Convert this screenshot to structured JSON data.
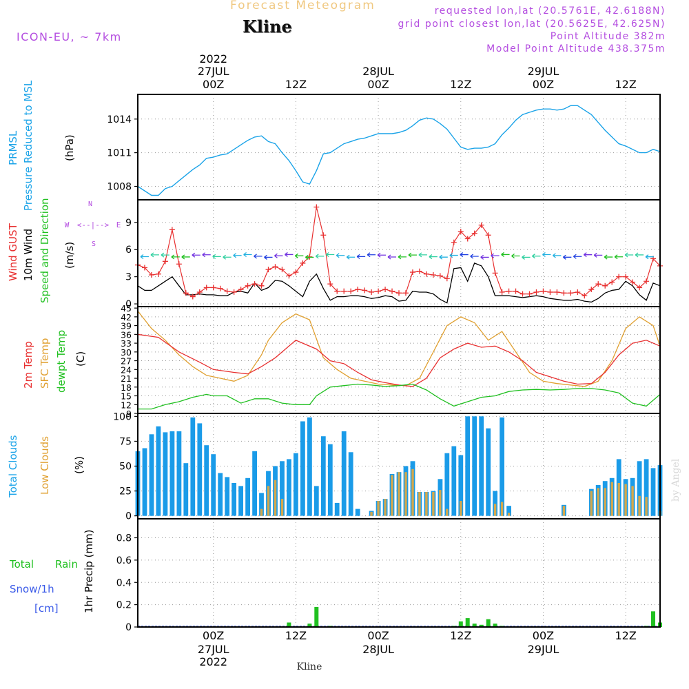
{
  "header": {
    "title": "Forecast Meteogram",
    "location": "Kline",
    "model": "ICON-EU, ~ 7km",
    "requested": "requested lon,lat (20.5761E, 42.6188N)",
    "grid_point": "grid point closest lon,lat (20.5625E, 42.625N)",
    "point_altitude": "Point Altitude 382m",
    "model_altitude": "Model Point Altitude 438.375m",
    "credit": "by Angel",
    "footer_location": "Kline"
  },
  "colors": {
    "pressure": "#1aa3e8",
    "gust": "#e83030",
    "wind": "#000000",
    "temp2m": "#e83030",
    "sfc": "#e0a030",
    "dewpt": "#20c020",
    "total_cloud": "#1a9be8",
    "low_cloud": "#d4a84c",
    "rain": "#20c020",
    "snow": "#3a5ae8",
    "label_purple": "#b44ee0"
  },
  "time_axis": {
    "top_year": "2022",
    "bottom_year": "2022",
    "ticks": [
      {
        "hour": 0,
        "label": "00Z",
        "date": "27JUL"
      },
      {
        "hour": 12,
        "label": "12Z",
        "date": ""
      },
      {
        "hour": 24,
        "label": "00Z",
        "date": "28JUL"
      },
      {
        "hour": 36,
        "label": "12Z",
        "date": ""
      },
      {
        "hour": 48,
        "label": "00Z",
        "date": "29JUL"
      },
      {
        "hour": 60,
        "label": "12Z",
        "date": ""
      }
    ]
  },
  "panels": {
    "pressure": {
      "label1": "PRMSL",
      "label2": "Pressure Reduced to MSL",
      "unit": "(hPa)"
    },
    "wind": {
      "label1": "Wind GUST",
      "label2": "10m Wind",
      "label3": "Speed and Direction",
      "unit": "(m/s)",
      "compass": {
        "n": "N",
        "s": "S",
        "w": "W",
        "e": "E",
        "cross": "<--|-->"
      }
    },
    "temp": {
      "label1": "2m Temp",
      "label2": "SFC Temp",
      "label3": "dewpt Temp",
      "unit": "(C)"
    },
    "clouds": {
      "label1": "Total Clouds",
      "label2": "Low Clouds",
      "unit": "(%)"
    },
    "precip": {
      "label1": "Total",
      "label1b": "Rain",
      "label2": "Snow/1h",
      "label3": "[cm]",
      "unit": "1hr Precip (mm)"
    }
  },
  "chart_data": [
    {
      "type": "line",
      "name": "PRMSL",
      "x_unit": "hours from 27JUL 00Z",
      "xlim": [
        -11,
        65
      ],
      "ylim": [
        1006.8,
        1016.2
      ],
      "yticks": [
        1008,
        1011,
        1014
      ],
      "x": [
        -11,
        -10,
        -9,
        -8,
        -7,
        -6,
        -5,
        -4,
        -3,
        -2,
        -1,
        0,
        1,
        2,
        3,
        4,
        5,
        6,
        7,
        8,
        9,
        10,
        11,
        12,
        13,
        14,
        15,
        16,
        17,
        18,
        19,
        20,
        21,
        22,
        23,
        24,
        25,
        26,
        27,
        28,
        29,
        30,
        31,
        32,
        33,
        34,
        35,
        36,
        37,
        38,
        39,
        40,
        41,
        42,
        43,
        44,
        45,
        46,
        47,
        48,
        49,
        50,
        51,
        52,
        53,
        54,
        55,
        56,
        57,
        58,
        59,
        60,
        61,
        62,
        63,
        64,
        65
      ],
      "values": [
        1008.0,
        1007.6,
        1007.2,
        1007.2,
        1007.8,
        1008.0,
        1008.5,
        1009.0,
        1009.5,
        1009.9,
        1010.5,
        1010.6,
        1010.8,
        1010.9,
        1011.3,
        1011.7,
        1012.1,
        1012.4,
        1012.5,
        1012.0,
        1011.8,
        1011.0,
        1010.3,
        1009.4,
        1008.4,
        1008.2,
        1009.4,
        1010.9,
        1011.0,
        1011.4,
        1011.8,
        1012.0,
        1012.2,
        1012.3,
        1012.5,
        1012.7,
        1012.7,
        1012.7,
        1012.8,
        1013.0,
        1013.4,
        1013.9,
        1014.1,
        1014.0,
        1013.6,
        1013.1,
        1012.3,
        1011.5,
        1011.3,
        1011.4,
        1011.4,
        1011.5,
        1011.8,
        1012.6,
        1013.2,
        1013.9,
        1014.4,
        1014.6,
        1014.8,
        1014.9,
        1014.9,
        1014.8,
        1014.9,
        1015.2,
        1015.2,
        1014.8,
        1014.4,
        1013.7,
        1013.0,
        1012.4,
        1011.8,
        1011.6,
        1011.3,
        1011.0,
        1011.0,
        1011.3,
        1011.1
      ]
    },
    {
      "type": "line",
      "name": "Wind",
      "x_unit": "hours from 27JUL 00Z",
      "xlim": [
        -11,
        65
      ],
      "ylim": [
        -0.3,
        11.5
      ],
      "yticks": [
        0,
        3,
        6,
        9
      ],
      "series": [
        {
          "name": "Wind GUST",
          "x": [
            -11,
            -10,
            -9,
            -8,
            -7,
            -6,
            -5,
            -4,
            -3,
            -2,
            -1,
            0,
            1,
            2,
            3,
            4,
            5,
            6,
            7,
            8,
            9,
            10,
            11,
            12,
            13,
            14,
            15,
            16,
            17,
            18,
            19,
            20,
            21,
            22,
            23,
            24,
            25,
            26,
            27,
            28,
            29,
            30,
            31,
            32,
            33,
            34,
            35,
            36,
            37,
            38,
            39,
            40,
            41,
            42,
            43,
            44,
            45,
            46,
            47,
            48,
            49,
            50,
            51,
            52,
            53,
            54,
            55,
            56,
            57,
            58,
            59,
            60,
            61,
            62,
            63,
            64,
            65
          ],
          "values": [
            4.3,
            4.0,
            3.2,
            3.3,
            4.7,
            8.2,
            4.4,
            1.2,
            0.8,
            1.3,
            1.8,
            1.8,
            1.7,
            1.4,
            1.3,
            1.6,
            2.0,
            2.2,
            2.0,
            3.8,
            4.1,
            3.8,
            3.1,
            3.5,
            4.5,
            5.2,
            10.7,
            7.6,
            2.2,
            1.4,
            1.4,
            1.4,
            1.6,
            1.5,
            1.3,
            1.4,
            1.6,
            1.4,
            1.2,
            1.2,
            3.5,
            3.6,
            3.3,
            3.2,
            3.1,
            2.8,
            6.8,
            8.0,
            7.2,
            7.8,
            8.7,
            7.6,
            3.4,
            1.3,
            1.4,
            1.4,
            1.1,
            1.1,
            1.3,
            1.4,
            1.3,
            1.3,
            1.2,
            1.2,
            1.3,
            0.9,
            1.6,
            2.2,
            2.0,
            2.4,
            3.0,
            3.0,
            2.4,
            1.8,
            2.5,
            5.0,
            4.2
          ]
        },
        {
          "name": "10m Wind",
          "x": [
            -11,
            -10,
            -9,
            -8,
            -7,
            -6,
            -5,
            -4,
            -3,
            -2,
            -1,
            0,
            1,
            2,
            3,
            4,
            5,
            6,
            7,
            8,
            9,
            10,
            11,
            12,
            13,
            14,
            15,
            16,
            17,
            18,
            19,
            20,
            21,
            22,
            23,
            24,
            25,
            26,
            27,
            28,
            29,
            30,
            31,
            32,
            33,
            34,
            35,
            36,
            37,
            38,
            39,
            40,
            41,
            42,
            43,
            44,
            45,
            46,
            47,
            48,
            49,
            50,
            51,
            52,
            53,
            54,
            55,
            56,
            57,
            58,
            59,
            60,
            61,
            62,
            63,
            64,
            65
          ],
          "values": [
            2.0,
            1.5,
            1.5,
            2.0,
            2.5,
            3.0,
            2.0,
            1.0,
            1.0,
            1.1,
            1.0,
            1.0,
            0.9,
            0.9,
            1.3,
            1.4,
            1.2,
            2.3,
            1.5,
            1.8,
            2.6,
            2.5,
            2.0,
            1.4,
            0.8,
            2.5,
            3.3,
            1.7,
            0.4,
            0.8,
            0.8,
            0.9,
            0.9,
            0.8,
            0.6,
            0.7,
            0.9,
            0.8,
            0.3,
            0.4,
            1.4,
            1.3,
            1.3,
            1.1,
            0.5,
            0.1,
            3.9,
            4.0,
            2.5,
            4.5,
            4.2,
            3.0,
            0.9,
            0.9,
            0.9,
            0.8,
            0.7,
            0.8,
            0.9,
            0.8,
            0.6,
            0.5,
            0.4,
            0.4,
            0.5,
            0.3,
            0.2,
            0.6,
            1.2,
            1.5,
            1.6,
            2.5,
            2.0,
            1.0,
            0.4,
            2.3,
            2.0
          ]
        }
      ]
    },
    {
      "type": "line",
      "name": "Temperature",
      "x_unit": "hours from 27JUL 00Z",
      "xlim": [
        -11,
        65
      ],
      "ylim": [
        9,
        45.5
      ],
      "yticks": [
        9,
        12,
        15,
        18,
        21,
        24,
        27,
        30,
        33,
        36,
        39,
        42,
        45
      ],
      "series": [
        {
          "name": "2m Temp",
          "x": [
            -11,
            -8,
            -5,
            -2,
            0,
            3,
            5,
            7,
            9,
            11,
            12,
            13,
            15,
            17,
            19,
            21,
            23,
            25,
            27,
            29,
            31,
            33,
            35,
            37,
            39,
            41,
            43,
            45,
            47,
            49,
            51,
            53,
            55,
            57,
            59,
            61,
            63,
            65
          ],
          "values": [
            36,
            35,
            30,
            26.5,
            24,
            23,
            22.5,
            25,
            28,
            32,
            34,
            33,
            31,
            27,
            26,
            23,
            20.5,
            19.5,
            18.7,
            18.2,
            21,
            28,
            31,
            33,
            31.6,
            32,
            30,
            27,
            23,
            21.5,
            20,
            19,
            19.2,
            23,
            29,
            33,
            34,
            32
          ]
        },
        {
          "name": "SFC Temp",
          "x": [
            -11,
            -9,
            -7,
            -5,
            -3,
            -1,
            1,
            3,
            5,
            7,
            8,
            10,
            12,
            14,
            16,
            18,
            20,
            22,
            24,
            26,
            28,
            30,
            32,
            34,
            36,
            38,
            40,
            42,
            44,
            46,
            48,
            50,
            52,
            54,
            56,
            58,
            60,
            62,
            64,
            65
          ],
          "values": [
            44,
            38,
            34,
            29,
            25,
            22,
            21,
            20,
            22,
            29,
            34,
            40,
            43,
            41,
            28,
            24,
            21,
            20,
            19,
            18.7,
            18.5,
            21,
            30,
            39,
            42,
            40,
            34,
            37,
            30,
            23,
            20,
            19.2,
            18.7,
            18.2,
            20,
            27,
            38,
            42,
            39,
            32
          ]
        },
        {
          "name": "dewpt Temp",
          "x": [
            -11,
            -9,
            -7,
            -5,
            -3,
            -1,
            0,
            2,
            4,
            6,
            8,
            10,
            12,
            14,
            15,
            17,
            19,
            21,
            23,
            25,
            27,
            29,
            31,
            33,
            35,
            37,
            39,
            41,
            43,
            45,
            47,
            49,
            51,
            53,
            55,
            57,
            59,
            61,
            63,
            65
          ],
          "values": [
            10.5,
            10.5,
            12,
            13,
            14.5,
            15.5,
            15,
            15,
            12.5,
            14,
            14,
            12.5,
            12,
            12,
            15,
            18,
            18.5,
            19,
            18.7,
            18.2,
            18.5,
            19,
            17,
            14,
            11.5,
            13,
            14.5,
            15,
            16.5,
            17,
            17.2,
            17,
            17.2,
            17.5,
            17.5,
            17,
            16,
            12.5,
            11.5,
            15.5
          ]
        }
      ]
    },
    {
      "type": "bar",
      "name": "Clouds",
      "x_unit": "hours from 27JUL 00Z",
      "xlim": [
        -11,
        65
      ],
      "ylim": [
        -3,
        103
      ],
      "yticks": [
        0,
        25,
        50,
        75,
        100
      ],
      "x": [
        -11,
        -10,
        -9,
        -8,
        -7,
        -6,
        -5,
        -4,
        -3,
        -2,
        -1,
        0,
        1,
        2,
        3,
        4,
        5,
        6,
        7,
        8,
        9,
        10,
        11,
        12,
        13,
        14,
        15,
        16,
        17,
        18,
        19,
        20,
        21,
        22,
        23,
        24,
        25,
        26,
        27,
        28,
        29,
        30,
        31,
        32,
        33,
        34,
        35,
        36,
        37,
        38,
        39,
        40,
        41,
        42,
        43,
        44,
        45,
        46,
        47,
        48,
        49,
        50,
        51,
        52,
        53,
        54,
        55,
        56,
        57,
        58,
        59,
        60,
        61,
        62,
        63,
        64,
        65
      ],
      "series": [
        {
          "name": "Total Clouds",
          "values": [
            65,
            68,
            82,
            90,
            84,
            85,
            85,
            53,
            99,
            93,
            71,
            62,
            43,
            39,
            33,
            30,
            38,
            65,
            23,
            45,
            50,
            55,
            57,
            63,
            95,
            99,
            30,
            80,
            72,
            13,
            85,
            64,
            7,
            0,
            5,
            15,
            17,
            42,
            44,
            50,
            55,
            24,
            24,
            25,
            37,
            63,
            70,
            61,
            100,
            100,
            100,
            88,
            25,
            99,
            10,
            0,
            0,
            0,
            0,
            0,
            0,
            0,
            11,
            0,
            0,
            0,
            27,
            31,
            35,
            38,
            57,
            37,
            38,
            55,
            57,
            48,
            51
          ]
        },
        {
          "name": "Low Clouds",
          "values": [
            0,
            0,
            0,
            0,
            0,
            0,
            0,
            0,
            0,
            0,
            0,
            0,
            0,
            0,
            0,
            0,
            0,
            0,
            7,
            30,
            36,
            17,
            0,
            0,
            0,
            0,
            0,
            0,
            0,
            0,
            0,
            0,
            0,
            0,
            4,
            15,
            17,
            41,
            44,
            44,
            47,
            24,
            24,
            24,
            26,
            7,
            0,
            15,
            0,
            0,
            0,
            0,
            12,
            14,
            3,
            0,
            0,
            0,
            0,
            0,
            0,
            0,
            10,
            0,
            0,
            0,
            25,
            28,
            28,
            34,
            33,
            32,
            30,
            20,
            19,
            0,
            5
          ]
        }
      ]
    },
    {
      "type": "bar",
      "name": "Precipitation",
      "x_unit": "hours from 27JUL 00Z",
      "xlim": [
        -11,
        65
      ],
      "ylim": [
        0,
        0.97
      ],
      "yticks": [
        0,
        0.2,
        0.4,
        0.6,
        0.8
      ],
      "ytick_labels": [
        "0",
        "0.2",
        "0.4",
        "0.6",
        "0.8"
      ],
      "series": [
        {
          "name": "Total Rain",
          "x": [
            11,
            14,
            15,
            17,
            35,
            36,
            37,
            38,
            39,
            40,
            41,
            42,
            63,
            64,
            65
          ],
          "values": [
            0.04,
            0.03,
            0.18,
            0.01,
            0.01,
            0.05,
            0.08,
            0.03,
            0.02,
            0.07,
            0.03,
            0.01,
            0.01,
            0.14,
            0.04
          ]
        }
      ]
    }
  ]
}
